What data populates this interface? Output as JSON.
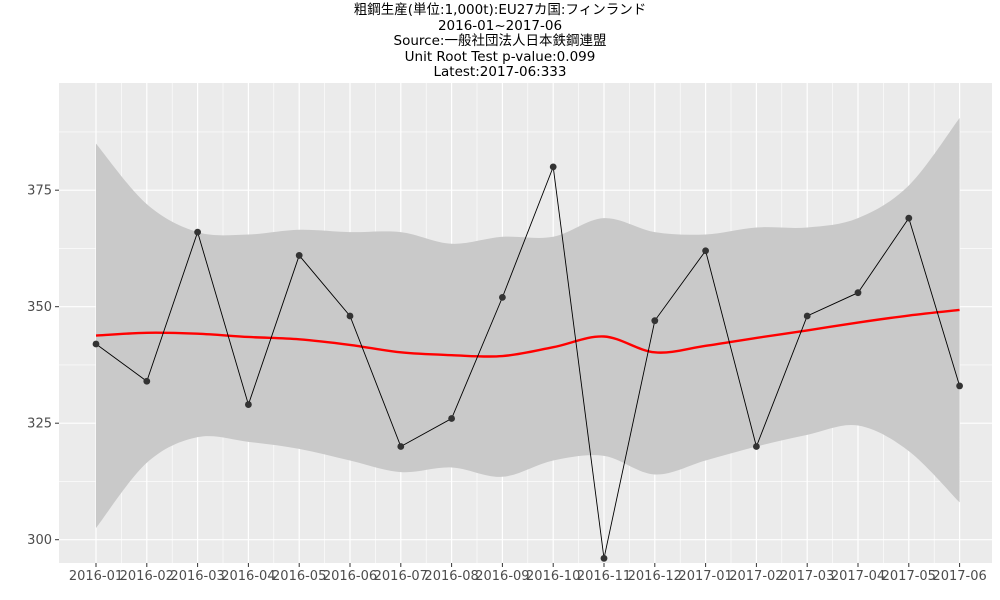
{
  "chart_data": {
    "type": "line",
    "title": "粗鋼生産(単位:1,000t):EU27カ国:フィンランド",
    "subtitles": [
      "2016-01~2017-06",
      "Source:一般社団法人日本鉄鋼連盟",
      "Unit Root Test p-value:0.099",
      "Latest:2017-06:333"
    ],
    "xlabel": "",
    "ylabel": "",
    "x": [
      "2016-01",
      "2016-02",
      "2016-03",
      "2016-04",
      "2016-05",
      "2016-06",
      "2016-07",
      "2016-08",
      "2016-09",
      "2016-10",
      "2016-11",
      "2016-12",
      "2017-01",
      "2017-02",
      "2017-03",
      "2017-04",
      "2017-05",
      "2017-06"
    ],
    "values": [
      342,
      334,
      366,
      329,
      361,
      348,
      320,
      326,
      352,
      380,
      296,
      347,
      362,
      320,
      348,
      353,
      369,
      333
    ],
    "smooth": [
      343.8,
      344.4,
      344.2,
      343.5,
      343.0,
      341.8,
      340.2,
      339.6,
      339.4,
      341.3,
      343.6,
      340.2,
      341.6,
      343.3,
      344.9,
      346.6,
      348.1,
      349.3
    ],
    "ci_upper": [
      385,
      372,
      366,
      365.5,
      366.5,
      366,
      366,
      363.5,
      365,
      365,
      369,
      366,
      365.5,
      367,
      367,
      369,
      376,
      390.5
    ],
    "ci_lower": [
      302.5,
      316.5,
      322,
      321,
      319.5,
      317,
      314.5,
      315.5,
      313.5,
      317,
      318,
      314,
      317,
      320,
      322.5,
      324.5,
      319,
      308
    ],
    "yticks": [
      300,
      325,
      350,
      375
    ],
    "ylim": [
      295,
      398
    ],
    "grid": true,
    "colors": {
      "panel": "#ebebeb",
      "grid": "#ffffff",
      "ribbon": "#c9c9c9",
      "smooth": "#ff0000",
      "line": "#000000",
      "points": "#333333"
    }
  }
}
